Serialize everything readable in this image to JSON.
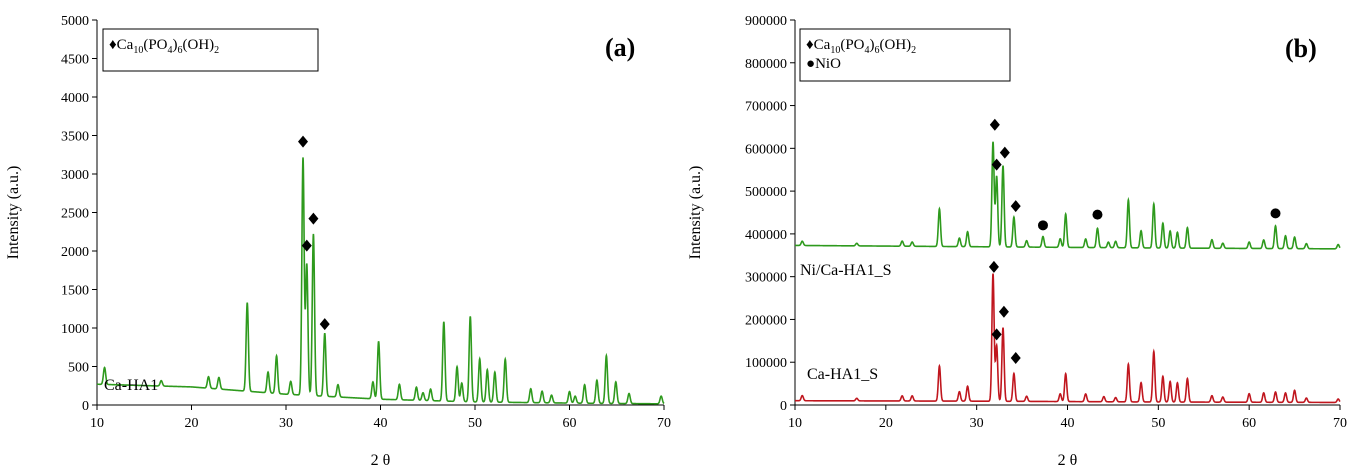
{
  "chart_data": [
    {
      "type": "line",
      "panel_label": "(a)",
      "xlabel": "2 θ",
      "ylabel": "Intensity (a.u.)",
      "xlim": [
        10,
        70
      ],
      "ylim": [
        0,
        5000
      ],
      "xticks": [
        10,
        20,
        30,
        40,
        50,
        60,
        70
      ],
      "yticks": [
        0,
        500,
        1000,
        1500,
        2000,
        2500,
        3000,
        3500,
        4000,
        4500,
        5000
      ],
      "grid": false,
      "legend": {
        "placement": "top-left",
        "entries": [
          {
            "marker": "diamond",
            "prefix": "♦",
            "parts": [
              [
                "Ca",
                ""
              ],
              [
                "10",
                "sub"
              ],
              [
                "(PO",
                ""
              ],
              [
                "4",
                "sub"
              ],
              [
                ")",
                ""
              ],
              [
                "6",
                "sub"
              ],
              [
                "(OH)",
                ""
              ],
              [
                "2",
                "sub"
              ]
            ]
          }
        ]
      },
      "series": [
        {
          "name": "Ca-HA1",
          "color": "#2e9a1d",
          "baseline": [
            [
              10,
              270
            ],
            [
              20,
              235
            ],
            [
              30,
              140
            ],
            [
              40,
              75
            ],
            [
              50,
              40
            ],
            [
              60,
              25
            ],
            [
              70,
              15
            ]
          ],
          "peaks": [
            [
              10.8,
              220
            ],
            [
              16.8,
              70
            ],
            [
              21.8,
              150
            ],
            [
              22.9,
              150
            ],
            [
              25.9,
              1150
            ],
            [
              28.1,
              270
            ],
            [
              29.0,
              490
            ],
            [
              30.5,
              170
            ],
            [
              31.8,
              3080
            ],
            [
              32.2,
              1700
            ],
            [
              32.9,
              2100
            ],
            [
              34.1,
              820
            ],
            [
              35.5,
              160
            ],
            [
              39.2,
              220
            ],
            [
              39.8,
              750
            ],
            [
              42.0,
              200
            ],
            [
              43.8,
              170
            ],
            [
              44.5,
              100
            ],
            [
              45.3,
              150
            ],
            [
              46.7,
              1030
            ],
            [
              48.1,
              450
            ],
            [
              48.6,
              240
            ],
            [
              49.5,
              1110
            ],
            [
              50.5,
              560
            ],
            [
              51.3,
              420
            ],
            [
              52.1,
              390
            ],
            [
              53.2,
              560
            ],
            [
              55.9,
              180
            ],
            [
              57.1,
              150
            ],
            [
              58.1,
              100
            ],
            [
              60.0,
              150
            ],
            [
              60.6,
              90
            ],
            [
              61.6,
              240
            ],
            [
              62.9,
              300
            ],
            [
              63.9,
              620
            ],
            [
              64.9,
              280
            ],
            [
              66.3,
              130
            ],
            [
              69.7,
              100
            ]
          ],
          "label": "Ca-HA1"
        }
      ],
      "annotations": [
        {
          "marker": "diamond",
          "x": 31.8,
          "y": 3420
        },
        {
          "marker": "diamond",
          "x": 32.2,
          "y": 2070
        },
        {
          "marker": "diamond",
          "x": 32.9,
          "y": 2420
        },
        {
          "marker": "diamond",
          "x": 34.1,
          "y": 1050
        }
      ]
    },
    {
      "type": "line",
      "panel_label": "(b)",
      "xlabel": "2 θ",
      "ylabel": "Intensity (a.u.)",
      "xlim": [
        10,
        70
      ],
      "ylim": [
        0,
        900000
      ],
      "xticks": [
        10,
        20,
        30,
        40,
        50,
        60,
        70
      ],
      "yticks": [
        0,
        100000,
        200000,
        300000,
        400000,
        500000,
        600000,
        700000,
        800000,
        900000
      ],
      "grid": false,
      "legend": {
        "placement": "top-left",
        "entries": [
          {
            "marker": "diamond",
            "prefix": "♦",
            "parts": [
              [
                "Ca",
                ""
              ],
              [
                "10",
                "sub"
              ],
              [
                "(PO",
                ""
              ],
              [
                "4",
                "sub"
              ],
              [
                ")",
                ""
              ],
              [
                "6",
                "sub"
              ],
              [
                "(OH)",
                ""
              ],
              [
                "2",
                "sub"
              ]
            ]
          },
          {
            "marker": "circle",
            "prefix": "●",
            "parts": [
              [
                "NiO",
                ""
              ]
            ]
          }
        ]
      },
      "series": [
        {
          "name": "Ni/Ca-HA1_S",
          "color": "#2e9a1d",
          "baseline": [
            [
              10,
              373000
            ],
            [
              30,
              370000
            ],
            [
              50,
              367000
            ],
            [
              70,
              365000
            ]
          ],
          "peaks": [
            [
              10.8,
              10000
            ],
            [
              16.8,
              6000
            ],
            [
              21.8,
              12000
            ],
            [
              22.9,
              10000
            ],
            [
              25.9,
              88000
            ],
            [
              28.1,
              20000
            ],
            [
              29.0,
              35000
            ],
            [
              31.8,
              245000
            ],
            [
              32.2,
              165000
            ],
            [
              32.9,
              190000
            ],
            [
              34.1,
              70000
            ],
            [
              35.5,
              15000
            ],
            [
              37.3,
              25000
            ],
            [
              39.2,
              20000
            ],
            [
              39.8,
              78000
            ],
            [
              42.0,
              20000
            ],
            [
              43.3,
              45000
            ],
            [
              44.5,
              13000
            ],
            [
              45.3,
              15000
            ],
            [
              46.7,
              112000
            ],
            [
              48.1,
              40000
            ],
            [
              49.5,
              103000
            ],
            [
              50.5,
              58000
            ],
            [
              51.3,
              40000
            ],
            [
              52.1,
              37000
            ],
            [
              53.2,
              48000
            ],
            [
              55.9,
              20000
            ],
            [
              57.1,
              12000
            ],
            [
              60.0,
              15000
            ],
            [
              61.6,
              20000
            ],
            [
              62.9,
              53000
            ],
            [
              64.0,
              30000
            ],
            [
              65.0,
              27000
            ],
            [
              66.3,
              12000
            ],
            [
              69.8,
              10000
            ]
          ],
          "label": "Ni/Ca-HA1_S"
        },
        {
          "name": "Ca-HA1_S",
          "color": "#c0161e",
          "baseline": [
            [
              10,
              10000
            ],
            [
              30,
              9000
            ],
            [
              50,
              7000
            ],
            [
              70,
              6000
            ]
          ],
          "peaks": [
            [
              10.8,
              12000
            ],
            [
              16.8,
              6000
            ],
            [
              21.8,
              12000
            ],
            [
              22.9,
              12000
            ],
            [
              25.9,
              82000
            ],
            [
              28.1,
              22000
            ],
            [
              29.0,
              35000
            ],
            [
              31.8,
              298000
            ],
            [
              32.2,
              130000
            ],
            [
              32.9,
              172000
            ],
            [
              34.1,
              65000
            ],
            [
              35.5,
              12000
            ],
            [
              39.2,
              18000
            ],
            [
              39.8,
              65000
            ],
            [
              42.0,
              18000
            ],
            [
              44.0,
              12000
            ],
            [
              45.3,
              10000
            ],
            [
              46.7,
              88000
            ],
            [
              48.1,
              45000
            ],
            [
              49.5,
              118000
            ],
            [
              50.5,
              60000
            ],
            [
              51.3,
              48000
            ],
            [
              52.1,
              45000
            ],
            [
              53.2,
              55000
            ],
            [
              55.9,
              15000
            ],
            [
              57.1,
              12000
            ],
            [
              60.0,
              20000
            ],
            [
              61.6,
              22000
            ],
            [
              62.9,
              24000
            ],
            [
              64.0,
              22000
            ],
            [
              65.0,
              28000
            ],
            [
              66.3,
              10000
            ],
            [
              69.8,
              8000
            ]
          ],
          "label": "Ca-HA1_S"
        }
      ],
      "annotations": [
        {
          "marker": "diamond",
          "x": 32.0,
          "y": 655000
        },
        {
          "marker": "diamond",
          "x": 32.2,
          "y": 562000
        },
        {
          "marker": "diamond",
          "x": 33.1,
          "y": 590000
        },
        {
          "marker": "diamond",
          "x": 34.3,
          "y": 465000
        },
        {
          "marker": "circle",
          "x": 37.3,
          "y": 420000
        },
        {
          "marker": "circle",
          "x": 43.3,
          "y": 445000
        },
        {
          "marker": "circle",
          "x": 62.9,
          "y": 448000
        },
        {
          "marker": "diamond",
          "x": 31.9,
          "y": 323000
        },
        {
          "marker": "diamond",
          "x": 32.2,
          "y": 165000
        },
        {
          "marker": "diamond",
          "x": 33.0,
          "y": 218000
        },
        {
          "marker": "diamond",
          "x": 34.3,
          "y": 110000
        }
      ]
    }
  ]
}
